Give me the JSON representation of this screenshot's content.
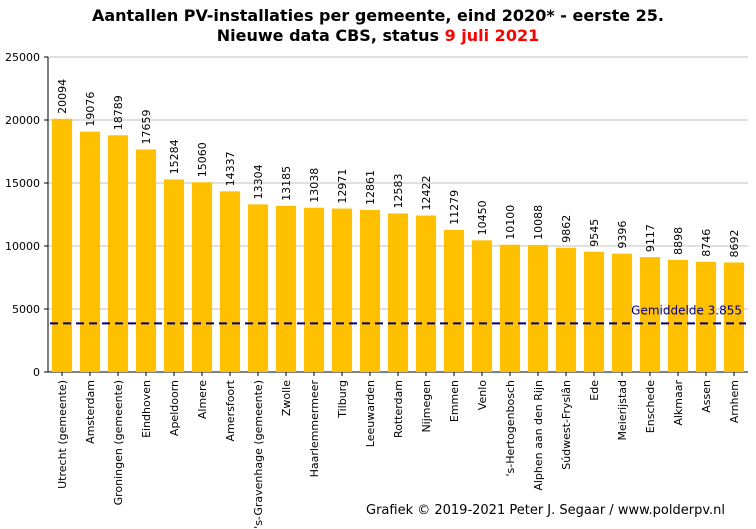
{
  "title": {
    "line1": "Aantallen  PV-installaties  per gemeente, eind 2020* - eerste 25.",
    "line2_prefix": "Nieuwe data CBS, status ",
    "line2_highlight": "9 juli  2021"
  },
  "credit": "Grafiek  © 2019-2021 Peter J. Segaar / www.polderpv.nl",
  "chart_data": {
    "type": "bar",
    "categories": [
      "Utrecht (gemeente)",
      "Amsterdam",
      "Groningen (gemeente)",
      "Eindhoven",
      "Apeldoorn",
      "Almere",
      "Amersfoort",
      "'s-Gravenhage (gemeente)",
      "Zwolle",
      "Haarlemmermeer",
      "Tilburg",
      "Leeuwarden",
      "Rotterdam",
      "Nijmegen",
      "Emmen",
      "Venlo",
      "'s-Hertogenbosch",
      "Alphen aan den Rijn",
      "Súdwest-Fryslân",
      "Ede",
      "Meierijstad",
      "Enschede",
      "Alkmaar",
      "Assen",
      "Arnhem"
    ],
    "values": [
      20094,
      19076,
      18789,
      17659,
      15284,
      15060,
      14337,
      13304,
      13185,
      13038,
      12971,
      12861,
      12583,
      12422,
      11279,
      10450,
      10100,
      10088,
      9862,
      9545,
      9396,
      9117,
      8898,
      8746,
      8692
    ],
    "data_labels": [
      "20094",
      "19076",
      "18789",
      "17659",
      "15284",
      "15060",
      "14337",
      "13304",
      "13185",
      "13038",
      "12971",
      "12861",
      "12583",
      "12422",
      "11279",
      "10450",
      "10100",
      "10088",
      "9862",
      "9545",
      "9396",
      "9117",
      "8898",
      "8746",
      "8692"
    ],
    "ylim": [
      0,
      25000
    ],
    "yticks": [
      "0",
      "5000",
      "10000",
      "15000",
      "20000",
      "25000"
    ],
    "ytick_values": [
      0,
      5000,
      10000,
      15000,
      20000,
      25000
    ],
    "reference_line": {
      "value": 3855,
      "label": "Gemiddelde  3.855",
      "color": "#000080"
    },
    "bar_color": "#ffc000",
    "grid": true
  }
}
